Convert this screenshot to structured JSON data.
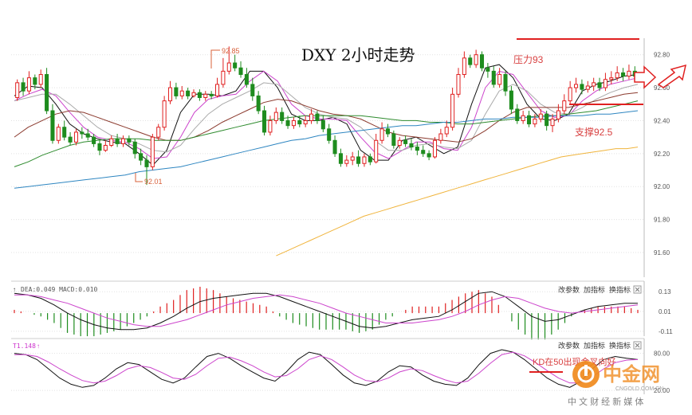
{
  "chart_data": [
    {
      "type": "candlestick",
      "title": "DXY 2小时走势",
      "ylim": [
        91.45,
        92.9
      ],
      "y_ticks": [
        "92.80",
        "92.60",
        "92.40",
        "92.20",
        "92.00",
        "91.80",
        "91.60"
      ],
      "grid": true,
      "candles": [
        [
          92.54,
          92.63,
          92.65,
          92.52
        ],
        [
          92.63,
          92.58,
          92.66,
          92.55
        ],
        [
          92.58,
          92.66,
          92.7,
          92.56
        ],
        [
          92.66,
          92.62,
          92.68,
          92.59
        ],
        [
          92.62,
          92.68,
          92.71,
          92.6
        ],
        [
          92.68,
          92.46,
          92.72,
          92.44
        ],
        [
          92.46,
          92.28,
          92.5,
          92.26
        ],
        [
          92.28,
          92.36,
          92.38,
          92.26
        ],
        [
          92.36,
          92.3,
          92.4,
          92.28
        ],
        [
          92.3,
          92.27,
          92.33,
          92.25
        ],
        [
          92.27,
          92.33,
          92.35,
          92.25
        ],
        [
          92.33,
          92.32,
          92.36,
          92.29
        ],
        [
          92.32,
          92.3,
          92.35,
          92.28
        ],
        [
          92.3,
          92.26,
          92.32,
          92.24
        ],
        [
          92.26,
          92.22,
          92.28,
          92.19
        ],
        [
          92.22,
          92.25,
          92.28,
          92.21
        ],
        [
          92.25,
          92.29,
          92.31,
          92.24
        ],
        [
          92.29,
          92.26,
          92.32,
          92.24
        ],
        [
          92.26,
          92.29,
          92.31,
          92.24
        ],
        [
          92.29,
          92.27,
          92.31,
          92.25
        ],
        [
          92.27,
          92.2,
          92.29,
          92.17
        ],
        [
          92.2,
          92.16,
          92.23,
          92.13
        ],
        [
          92.16,
          92.12,
          92.19,
          92.01
        ],
        [
          92.12,
          92.3,
          92.32,
          92.1
        ],
        [
          92.3,
          92.36,
          92.38,
          92.28
        ],
        [
          92.36,
          92.52,
          92.55,
          92.34
        ],
        [
          92.52,
          92.6,
          92.64,
          92.5
        ],
        [
          92.6,
          92.55,
          92.63,
          92.53
        ],
        [
          92.55,
          92.58,
          92.61,
          92.53
        ],
        [
          92.58,
          92.55,
          92.6,
          92.53
        ],
        [
          92.55,
          92.57,
          92.59,
          92.54
        ],
        [
          92.57,
          92.54,
          92.59,
          92.52
        ],
        [
          92.54,
          92.56,
          92.58,
          92.52
        ],
        [
          92.56,
          92.55,
          92.58,
          92.53
        ],
        [
          92.55,
          92.62,
          92.66,
          92.54
        ],
        [
          92.62,
          92.7,
          92.78,
          92.6
        ],
        [
          92.7,
          92.75,
          92.85,
          92.68
        ],
        [
          92.75,
          92.72,
          92.8,
          92.7
        ],
        [
          92.72,
          92.68,
          92.76,
          92.66
        ],
        [
          92.68,
          92.62,
          92.72,
          92.6
        ],
        [
          92.62,
          92.55,
          92.66,
          92.52
        ],
        [
          92.55,
          92.46,
          92.58,
          92.44
        ],
        [
          92.46,
          92.33,
          92.49,
          92.31
        ],
        [
          92.33,
          92.4,
          92.43,
          92.31
        ],
        [
          92.4,
          92.45,
          92.48,
          92.38
        ],
        [
          92.45,
          92.4,
          92.48,
          92.38
        ],
        [
          92.4,
          92.37,
          92.43,
          92.35
        ],
        [
          92.37,
          92.4,
          92.42,
          92.35
        ],
        [
          92.4,
          92.38,
          92.43,
          92.36
        ],
        [
          92.38,
          92.4,
          92.43,
          92.36
        ],
        [
          92.4,
          92.44,
          92.47,
          92.38
        ],
        [
          92.44,
          92.4,
          92.46,
          92.38
        ],
        [
          92.4,
          92.35,
          92.43,
          92.33
        ],
        [
          92.35,
          92.28,
          92.38,
          92.26
        ],
        [
          92.28,
          92.2,
          92.31,
          92.18
        ],
        [
          92.2,
          92.14,
          92.23,
          92.12
        ],
        [
          92.14,
          92.16,
          92.19,
          92.12
        ],
        [
          92.16,
          92.18,
          92.21,
          92.13
        ],
        [
          92.18,
          92.14,
          92.22,
          92.12
        ],
        [
          92.14,
          92.18,
          92.2,
          92.12
        ],
        [
          92.18,
          92.15,
          92.2,
          92.13
        ],
        [
          92.15,
          92.28,
          92.32,
          92.14
        ],
        [
          92.28,
          92.35,
          92.39,
          92.26
        ],
        [
          92.35,
          92.32,
          92.38,
          92.3
        ],
        [
          92.32,
          92.25,
          92.34,
          92.23
        ],
        [
          92.25,
          92.28,
          92.3,
          92.23
        ],
        [
          92.28,
          92.26,
          92.31,
          92.24
        ],
        [
          92.26,
          92.24,
          92.29,
          92.22
        ],
        [
          92.24,
          92.22,
          92.27,
          92.19
        ],
        [
          92.22,
          92.2,
          92.25,
          92.18
        ],
        [
          92.2,
          92.18,
          92.22,
          92.16
        ],
        [
          92.18,
          92.28,
          92.3,
          92.17
        ],
        [
          92.28,
          92.32,
          92.35,
          92.26
        ],
        [
          92.32,
          92.36,
          92.4,
          92.3
        ],
        [
          92.36,
          92.56,
          92.6,
          92.34
        ],
        [
          92.56,
          92.68,
          92.72,
          92.54
        ],
        [
          92.68,
          92.78,
          92.82,
          92.66
        ],
        [
          92.78,
          92.74,
          92.8,
          92.72
        ],
        [
          92.74,
          92.8,
          92.83,
          92.72
        ],
        [
          92.8,
          92.72,
          92.82,
          92.7
        ],
        [
          92.72,
          92.7,
          92.75,
          92.66
        ],
        [
          92.7,
          92.62,
          92.73,
          92.6
        ],
        [
          92.62,
          92.68,
          92.72,
          92.6
        ],
        [
          92.68,
          92.58,
          92.7,
          92.55
        ],
        [
          92.58,
          92.47,
          92.61,
          92.44
        ],
        [
          92.47,
          92.4,
          92.5,
          92.38
        ],
        [
          92.4,
          92.43,
          92.46,
          92.38
        ],
        [
          92.43,
          92.38,
          92.46,
          92.36
        ],
        [
          92.38,
          92.41,
          92.44,
          92.36
        ],
        [
          92.41,
          92.44,
          92.47,
          92.39
        ],
        [
          92.44,
          92.37,
          92.46,
          92.34
        ],
        [
          92.37,
          92.41,
          92.44,
          92.33
        ],
        [
          92.41,
          92.46,
          92.5,
          92.39
        ],
        [
          92.46,
          92.52,
          92.56,
          92.44
        ],
        [
          92.52,
          92.6,
          92.64,
          92.5
        ],
        [
          92.6,
          92.62,
          92.66,
          92.57
        ],
        [
          92.62,
          92.59,
          92.65,
          92.56
        ],
        [
          92.59,
          92.61,
          92.64,
          92.57
        ],
        [
          92.61,
          92.63,
          92.66,
          92.58
        ],
        [
          92.63,
          92.6,
          92.66,
          92.58
        ],
        [
          92.6,
          92.65,
          92.69,
          92.58
        ],
        [
          92.65,
          92.66,
          92.7,
          92.62
        ],
        [
          92.66,
          92.69,
          92.73,
          92.64
        ],
        [
          92.69,
          92.67,
          92.72,
          92.64
        ],
        [
          92.67,
          92.7,
          92.74,
          92.65
        ],
        [
          92.7,
          92.67,
          92.73,
          92.64
        ]
      ],
      "moving_averages": [
        {
          "color": "#111111",
          "values": [
            92.55,
            92.61,
            92.6,
            92.5,
            92.38,
            92.32,
            92.29,
            92.27,
            92.26,
            92.2,
            92.13,
            92.22,
            92.45,
            92.56,
            92.56,
            92.55,
            92.58,
            92.7,
            92.7,
            92.6,
            92.44,
            92.4,
            92.4,
            92.42,
            92.38,
            92.22,
            92.16,
            92.16,
            92.28,
            92.3,
            92.25,
            92.2,
            92.24,
            92.5,
            92.72,
            92.74,
            92.66,
            92.5,
            92.41,
            92.4,
            92.44,
            92.58,
            92.62,
            92.64,
            92.67,
            92.68
          ]
        },
        {
          "color": "#cc44cc",
          "values": [
            92.52,
            92.56,
            92.59,
            92.55,
            92.45,
            92.36,
            92.3,
            92.28,
            92.27,
            92.23,
            92.17,
            92.18,
            92.3,
            92.45,
            92.53,
            92.55,
            92.56,
            92.64,
            92.7,
            92.64,
            92.5,
            92.43,
            92.41,
            92.41,
            92.4,
            92.3,
            92.21,
            92.17,
            92.22,
            92.27,
            92.27,
            92.23,
            92.22,
            92.36,
            92.6,
            92.7,
            92.68,
            92.57,
            92.46,
            92.42,
            92.43,
            92.52,
            92.58,
            92.62,
            92.64,
            92.66
          ]
        },
        {
          "color": "#aaaaaa",
          "values": [
            92.52,
            92.54,
            92.56,
            92.56,
            92.5,
            92.43,
            92.36,
            92.31,
            92.29,
            92.26,
            92.22,
            92.21,
            92.25,
            92.35,
            92.44,
            92.5,
            92.54,
            92.58,
            92.63,
            92.62,
            92.55,
            92.48,
            92.44,
            92.42,
            92.41,
            92.36,
            92.28,
            92.22,
            92.22,
            92.25,
            92.26,
            92.24,
            92.23,
            92.28,
            92.44,
            92.58,
            92.62,
            92.58,
            92.5,
            92.45,
            92.44,
            92.48,
            92.53,
            92.57,
            92.6,
            92.62
          ]
        },
        {
          "color": "#8b3a2e",
          "values": [
            92.3,
            92.36,
            92.4,
            92.44,
            92.46,
            92.45,
            92.42,
            92.39,
            92.36,
            92.33,
            92.3,
            92.28,
            92.28,
            92.3,
            92.34,
            92.39,
            92.43,
            92.47,
            92.51,
            92.53,
            92.52,
            92.49,
            92.46,
            92.44,
            92.43,
            92.41,
            92.37,
            92.33,
            92.31,
            92.3,
            92.29,
            92.28,
            92.27,
            92.29,
            92.34,
            92.4,
            92.45,
            92.48,
            92.48,
            92.48,
            92.48,
            92.5,
            92.52,
            92.54,
            92.56,
            92.57
          ]
        },
        {
          "color": "#2e8b2e",
          "values": [
            92.12,
            92.15,
            92.19,
            92.22,
            92.25,
            92.27,
            92.28,
            92.29,
            92.29,
            92.29,
            92.28,
            92.28,
            92.28,
            92.3,
            92.32,
            92.34,
            92.36,
            92.38,
            92.4,
            92.41,
            92.42,
            92.43,
            92.43,
            92.43,
            92.43,
            92.43,
            92.42,
            92.41,
            92.4,
            92.4,
            92.39,
            92.39,
            92.38,
            92.38,
            92.39,
            92.4,
            92.41,
            92.42,
            92.43,
            92.43,
            92.44,
            92.45,
            92.46,
            92.48,
            92.5,
            92.52
          ]
        },
        {
          "color": "#2e86c1",
          "values": [
            91.99,
            92.0,
            92.01,
            92.02,
            92.03,
            92.04,
            92.05,
            92.06,
            92.07,
            92.09,
            92.1,
            92.11,
            92.12,
            92.14,
            92.16,
            92.18,
            92.2,
            92.22,
            92.24,
            92.26,
            92.28,
            92.29,
            92.31,
            92.32,
            92.33,
            92.34,
            92.35,
            92.36,
            92.37,
            92.37,
            92.38,
            92.39,
            92.39,
            92.4,
            92.41,
            92.41,
            92.42,
            92.42,
            92.42,
            92.43,
            92.43,
            92.43,
            92.44,
            92.44,
            92.45,
            92.46
          ]
        },
        {
          "color": "#f0b43c",
          "start": 0.42,
          "values": [
            91.58,
            91.61,
            91.64,
            91.67,
            91.7,
            91.73,
            91.76,
            91.79,
            91.82,
            91.84,
            91.86,
            91.88,
            91.9,
            91.92,
            91.94,
            91.96,
            91.98,
            92.0,
            92.02,
            92.04,
            92.06,
            92.08,
            92.1,
            92.12,
            92.14,
            92.16,
            92.18,
            92.19,
            92.2,
            92.21,
            92.22,
            92.23,
            92.23,
            92.24
          ]
        }
      ],
      "annotations": {
        "high_label": "92.85",
        "low_label": "92.01",
        "resistance_label": "压力93",
        "support_label": "支撑92.5"
      }
    },
    {
      "type": "macd",
      "header": "DEA:0.049 MACD:0.010",
      "ylim": [
        -0.13,
        0.16
      ],
      "y_ticks": [
        "0.13",
        "0.01",
        "-0.11"
      ],
      "buttons": [
        "改参数",
        "加指标",
        "换指标"
      ],
      "dif": [
        0.12,
        0.11,
        0.09,
        0.05,
        0.0,
        -0.04,
        -0.07,
        -0.09,
        -0.1,
        -0.1,
        -0.09,
        -0.06,
        -0.02,
        0.03,
        0.07,
        0.09,
        0.1,
        0.11,
        0.12,
        0.12,
        0.1,
        0.07,
        0.04,
        0.01,
        -0.02,
        -0.05,
        -0.08,
        -0.09,
        -0.08,
        -0.06,
        -0.04,
        -0.03,
        -0.02,
        0.02,
        0.07,
        0.12,
        0.13,
        0.1,
        0.04,
        -0.02,
        -0.05,
        -0.04,
        -0.01,
        0.02,
        0.04,
        0.05,
        0.06,
        0.06
      ],
      "dea": [
        0.11,
        0.11,
        0.1,
        0.08,
        0.06,
        0.03,
        0.0,
        -0.03,
        -0.05,
        -0.07,
        -0.08,
        -0.08,
        -0.06,
        -0.04,
        -0.01,
        0.02,
        0.05,
        0.07,
        0.09,
        0.1,
        0.11,
        0.1,
        0.08,
        0.06,
        0.03,
        0.0,
        -0.02,
        -0.04,
        -0.06,
        -0.06,
        -0.06,
        -0.05,
        -0.04,
        -0.02,
        0.01,
        0.05,
        0.08,
        0.1,
        0.09,
        0.06,
        0.03,
        0.01,
        0.0,
        0.01,
        0.02,
        0.03,
        0.04,
        0.05
      ]
    },
    {
      "type": "kdj",
      "header": "T1.148",
      "ylim": [
        15,
        95
      ],
      "y_ticks": [
        "80.00",
        "20.00"
      ],
      "buttons": [
        "改参数",
        "加指标",
        "换指标"
      ],
      "k": [
        80,
        78,
        70,
        55,
        40,
        30,
        25,
        28,
        40,
        55,
        65,
        62,
        50,
        38,
        32,
        40,
        58,
        75,
        80,
        72,
        60,
        50,
        40,
        35,
        50,
        70,
        82,
        78,
        62,
        45,
        32,
        28,
        35,
        50,
        60,
        58,
        45,
        35,
        30,
        28,
        40,
        62,
        80,
        86,
        82,
        70,
        55,
        40,
        30,
        25,
        35,
        55,
        70,
        75,
        72,
        70
      ],
      "d": [
        78,
        78,
        75,
        66,
        55,
        45,
        36,
        32,
        35,
        44,
        55,
        60,
        57,
        49,
        40,
        38,
        46,
        60,
        72,
        74,
        68,
        60,
        50,
        42,
        44,
        55,
        70,
        76,
        70,
        58,
        45,
        36,
        34,
        40,
        50,
        55,
        52,
        44,
        37,
        32,
        35,
        48,
        64,
        78,
        82,
        76,
        65,
        52,
        40,
        32,
        32,
        42,
        55,
        65,
        69,
        70
      ],
      "annotation": "KD在50出现金叉向好"
    }
  ],
  "watermark": {
    "brand": "中金网",
    "domain_text": "CNGOLD.COM.CN",
    "tagline": "中 文 财 经 新 媒 体"
  },
  "colors": {
    "up": "#e02020",
    "down": "#1e8c1e",
    "annotation": "#d84040",
    "grid": "#e2e2e2"
  }
}
